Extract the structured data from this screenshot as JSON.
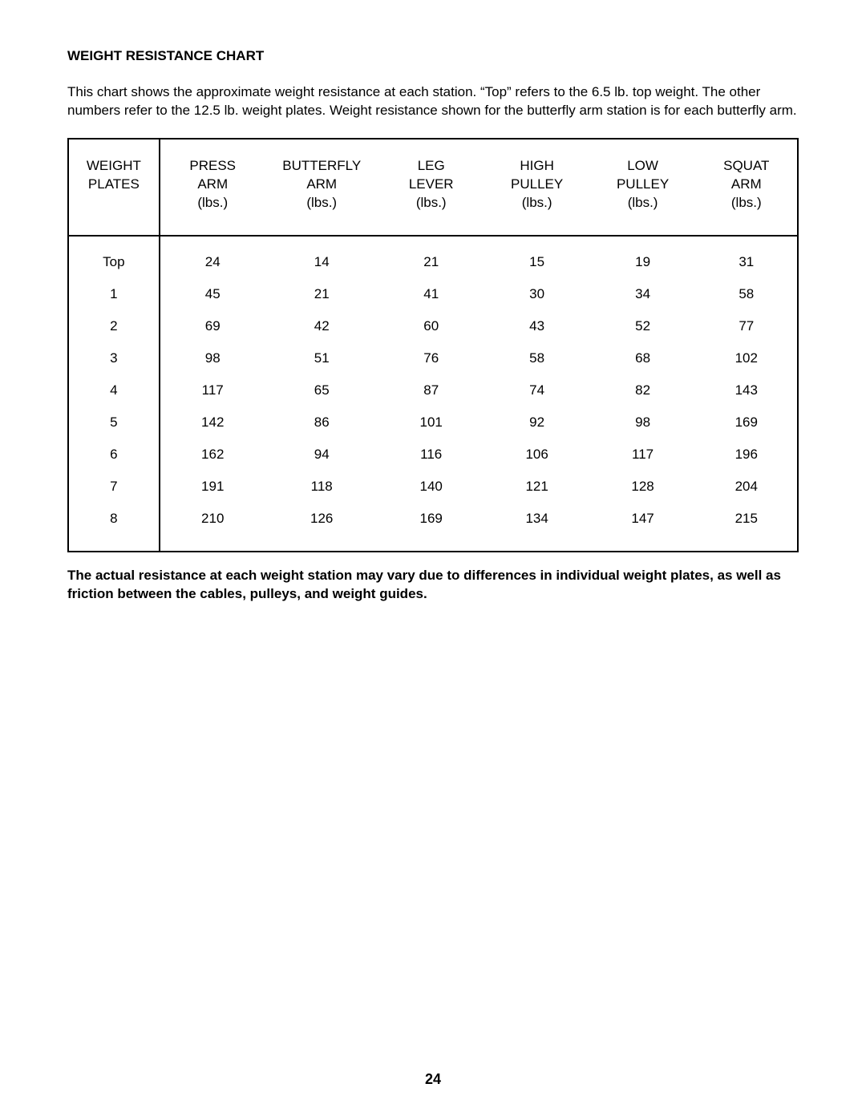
{
  "page": {
    "title": "WEIGHT RESISTANCE CHART",
    "intro": "This chart shows the approximate weight resistance at each station. “Top” refers to the 6.5 lb. top weight. The other numbers refer to the 12.5 lb. weight plates. Weight resistance shown for the butterfly arm station is for each butterfly arm.",
    "footnote": "The actual resistance at each weight station may vary due to differences in individual weight plates, as well as friction between the cables, pulleys, and weight guides.",
    "page_number": "24"
  },
  "table": {
    "type": "table",
    "border_color": "#000000",
    "background_color": "#ffffff",
    "text_color": "#000000",
    "font_size_pt": 13,
    "columns": [
      {
        "label_line1": "WEIGHT",
        "label_line2": "PLATES",
        "label_line3": "",
        "width_pct": 12.5
      },
      {
        "label_line1": "PRESS",
        "label_line2": "ARM",
        "label_line3": "(lbs.)",
        "width_pct": 14.5
      },
      {
        "label_line1": "BUTTERFLY",
        "label_line2": "ARM",
        "label_line3": "(lbs.)",
        "width_pct": 15.5
      },
      {
        "label_line1": "LEG",
        "label_line2": "LEVER",
        "label_line3": "(lbs.)",
        "width_pct": 14.5
      },
      {
        "label_line1": "HIGH",
        "label_line2": "PULLEY",
        "label_line3": "(lbs.)",
        "width_pct": 14.5
      },
      {
        "label_line1": "LOW",
        "label_line2": "PULLEY",
        "label_line3": "(lbs.)",
        "width_pct": 14.5
      },
      {
        "label_line1": "SQUAT",
        "label_line2": "ARM",
        "label_line3": "(lbs.)",
        "width_pct": 14.0
      }
    ],
    "rows": [
      [
        "Top",
        "24",
        "14",
        "21",
        "15",
        "19",
        "31"
      ],
      [
        "1",
        "45",
        "21",
        "41",
        "30",
        "34",
        "58"
      ],
      [
        "2",
        "69",
        "42",
        "60",
        "43",
        "52",
        "77"
      ],
      [
        "3",
        "98",
        "51",
        "76",
        "58",
        "68",
        "102"
      ],
      [
        "4",
        "117",
        "65",
        "87",
        "74",
        "82",
        "143"
      ],
      [
        "5",
        "142",
        "86",
        "101",
        "92",
        "98",
        "169"
      ],
      [
        "6",
        "162",
        "94",
        "116",
        "106",
        "117",
        "196"
      ],
      [
        "7",
        "191",
        "118",
        "140",
        "121",
        "128",
        "204"
      ],
      [
        "8",
        "210",
        "126",
        "169",
        "134",
        "147",
        "215"
      ]
    ]
  }
}
